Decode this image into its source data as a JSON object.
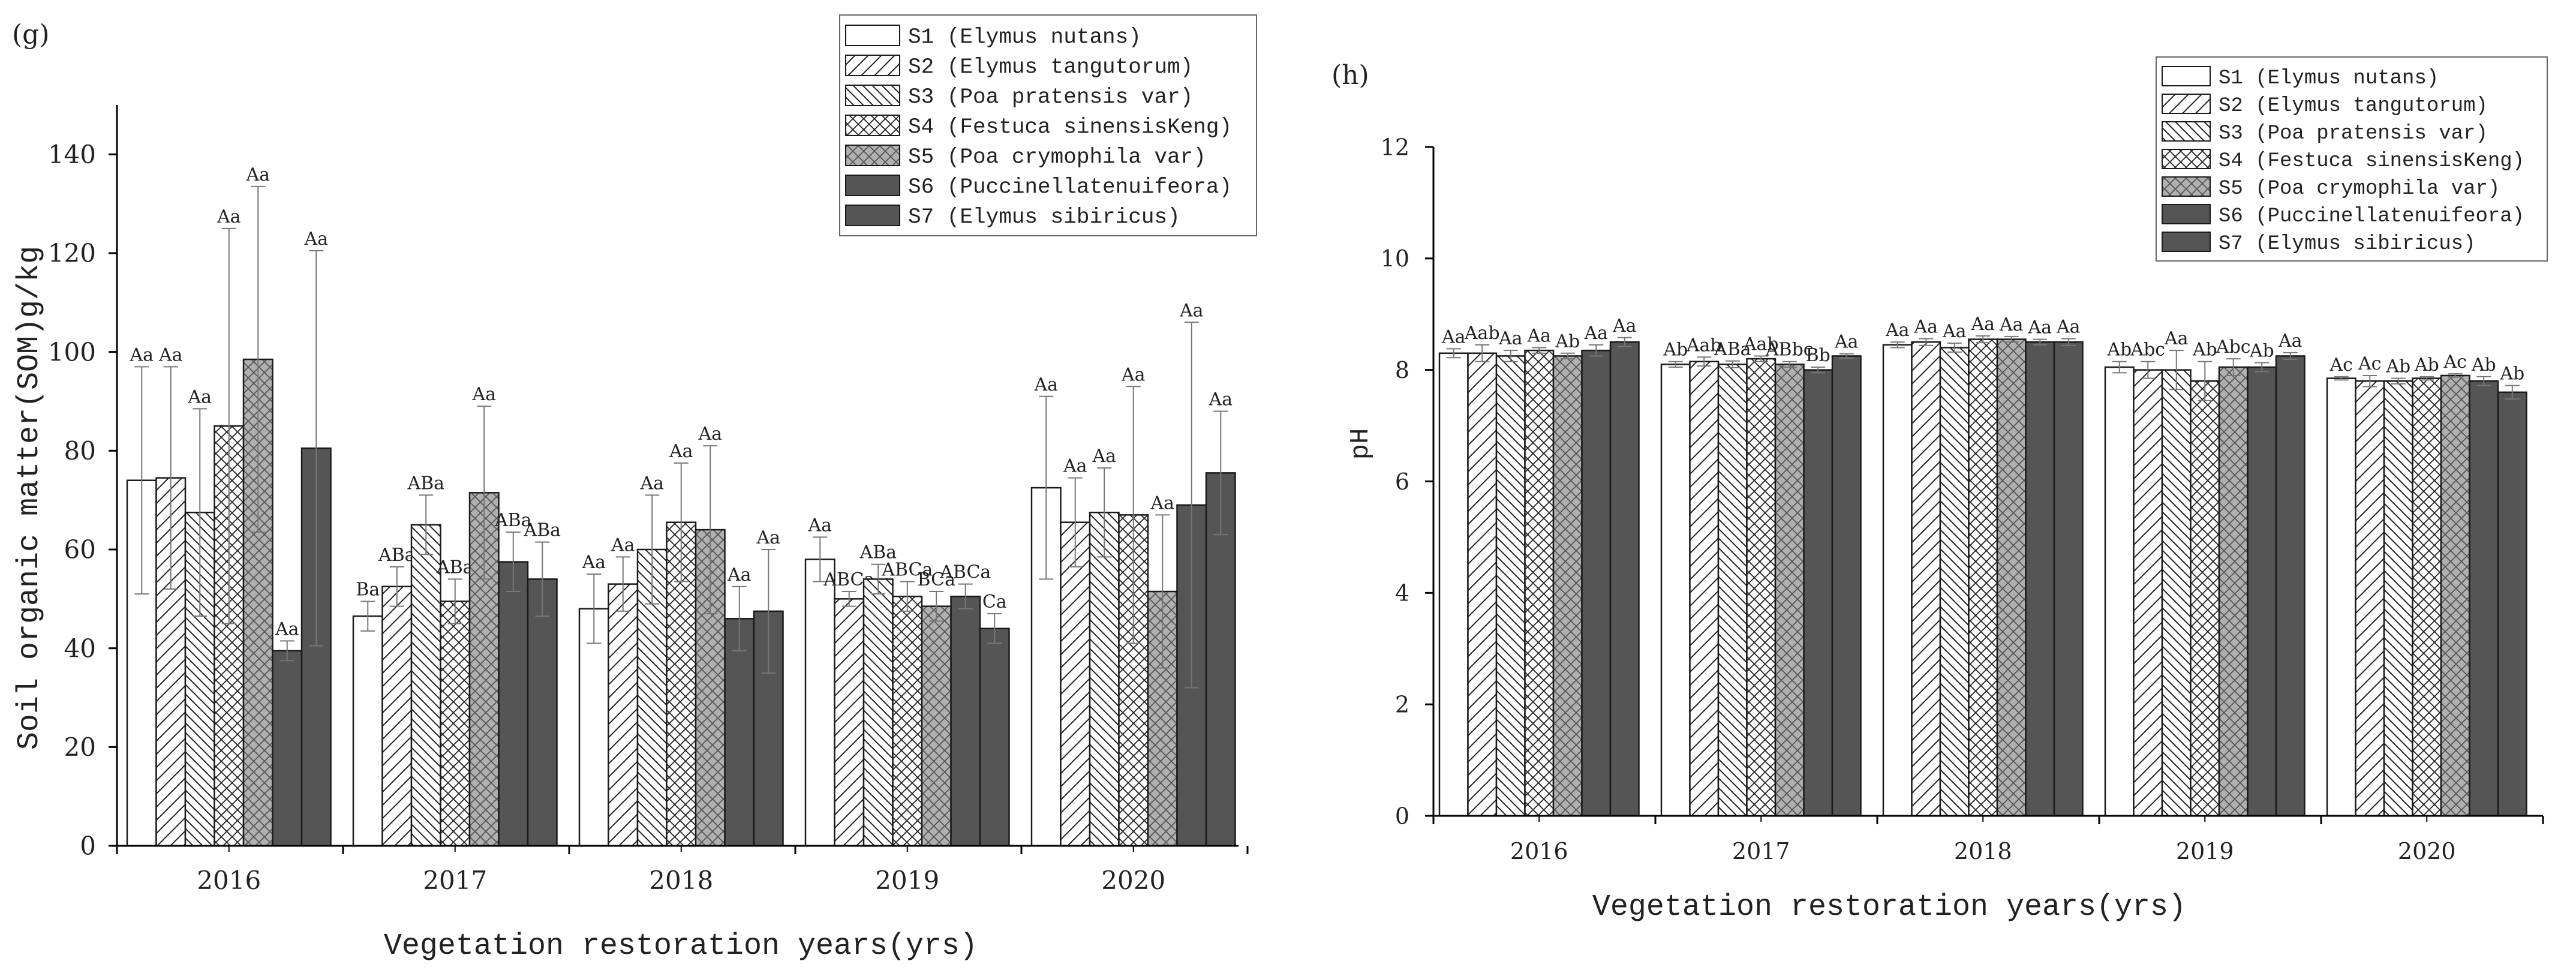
{
  "chart_data": [
    {
      "panel_label": "(g)",
      "type": "bar",
      "title": "",
      "xlabel": "Vegetation restoration years(yrs)",
      "ylabel": "Soil organic matter(SOM)g/kg",
      "ylim": [
        0,
        150
      ],
      "yticks": [
        0,
        20,
        40,
        60,
        80,
        100,
        120,
        140
      ],
      "legend_position": "top-right",
      "categories": [
        "2016",
        "2017",
        "2018",
        "2019",
        "2020"
      ],
      "series": [
        {
          "name": "S1 (Elymus nutans)",
          "pattern": "plain",
          "values": [
            74,
            46.5,
            48,
            58,
            72.5
          ],
          "errors": [
            23,
            3,
            7,
            4.5,
            18.5
          ],
          "labels": [
            "Aa",
            "Ba",
            "Aa",
            "Aa",
            "Aa"
          ]
        },
        {
          "name": "S2 (Elymus tangutorum)",
          "pattern": "diag-right",
          "values": [
            74.5,
            52.5,
            53,
            50,
            65.5
          ],
          "errors": [
            22.5,
            4,
            5.5,
            1.5,
            9
          ],
          "labels": [
            "Aa",
            "ABa",
            "Aa",
            "ABCa",
            "Aa"
          ]
        },
        {
          "name": "S3 (Poa pratensis var)",
          "pattern": "diag-left",
          "values": [
            67.5,
            65,
            60,
            54,
            67.5
          ],
          "errors": [
            21,
            6,
            11,
            3,
            9
          ],
          "labels": [
            "Aa",
            "ABa",
            "Aa",
            "ABa",
            "Aa"
          ]
        },
        {
          "name": "S4 (Festuca sinensisKeng)",
          "pattern": "cross",
          "values": [
            85,
            49.5,
            65.5,
            50.5,
            67
          ],
          "errors": [
            40,
            4.5,
            12,
            3,
            26
          ],
          "labels": [
            "Aa",
            "ABa",
            "Aa",
            "ABCa",
            "Aa"
          ]
        },
        {
          "name": "S5 (Poa crymophila var)",
          "pattern": "grey-cross",
          "values": [
            98.5,
            71.5,
            64,
            48.5,
            51.5
          ],
          "errors": [
            35,
            17.5,
            17,
            3,
            15.5
          ],
          "labels": [
            "Aa",
            "Aa",
            "Aa",
            "BCa",
            "Aa"
          ]
        },
        {
          "name": "S6 (Puccinellatenuifeora)",
          "pattern": "dark",
          "values": [
            39.5,
            57.5,
            46,
            50.5,
            69
          ],
          "errors": [
            2,
            6,
            6.5,
            2.5,
            37
          ],
          "labels": [
            "Aa",
            "ABa",
            "Aa",
            "ABCa",
            "Aa"
          ]
        },
        {
          "name": "S7 (Elymus sibiricus)",
          "pattern": "dark",
          "values": [
            80.5,
            54,
            47.5,
            44,
            75.5
          ],
          "errors": [
            40,
            7.5,
            12.5,
            3,
            12.5
          ],
          "labels": [
            "Aa",
            "ABa",
            "Aa",
            "Ca",
            "Aa"
          ]
        }
      ]
    },
    {
      "panel_label": "(h)",
      "type": "bar",
      "title": "",
      "xlabel": "Vegetation restoration years(yrs)",
      "ylabel": "pH",
      "ylim": [
        0,
        12
      ],
      "yticks": [
        0,
        2,
        4,
        6,
        8,
        10,
        12
      ],
      "legend_position": "top-right",
      "categories": [
        "2016",
        "2017",
        "2018",
        "2019",
        "2020"
      ],
      "series": [
        {
          "name": "S1 (Elymus nutans)",
          "pattern": "plain",
          "values": [
            8.3,
            8.1,
            8.45,
            8.05,
            7.85
          ],
          "errors": [
            0.08,
            0.05,
            0.05,
            0.1,
            0.03
          ],
          "labels": [
            "Aa",
            "Ab",
            "Aa",
            "Ab",
            "Ac"
          ]
        },
        {
          "name": "S2 (Elymus tangutorum)",
          "pattern": "diag-right",
          "values": [
            8.3,
            8.15,
            8.5,
            8.0,
            7.8
          ],
          "errors": [
            0.15,
            0.08,
            0.06,
            0.15,
            0.1
          ],
          "labels": [
            "Aab",
            "Aab",
            "Aa",
            "Abc",
            "Ac"
          ]
        },
        {
          "name": "S3 (Poa pratensis var)",
          "pattern": "diag-left",
          "values": [
            8.25,
            8.1,
            8.4,
            8.0,
            7.8
          ],
          "errors": [
            0.1,
            0.06,
            0.08,
            0.35,
            0.05
          ],
          "labels": [
            "Aa",
            "ABa",
            "Aa",
            "Aa",
            "Ab"
          ]
        },
        {
          "name": "S4 (Festuca sinensisKeng)",
          "pattern": "cross",
          "values": [
            8.35,
            8.2,
            8.55,
            7.8,
            7.85
          ],
          "errors": [
            0.05,
            0.05,
            0.06,
            0.35,
            0.03
          ],
          "labels": [
            "Aa",
            "Aab",
            "Aa",
            "Ab",
            "Ab"
          ]
        },
        {
          "name": "S5 (Poa crymophila var)",
          "pattern": "grey-cross",
          "values": [
            8.25,
            8.1,
            8.55,
            8.05,
            7.9
          ],
          "errors": [
            0.05,
            0.05,
            0.05,
            0.15,
            0.03
          ],
          "labels": [
            "Ab",
            "ABbc",
            "Aa",
            "Abc",
            "Ac"
          ]
        },
        {
          "name": "S6 (Puccinellatenuifeora)",
          "pattern": "dark",
          "values": [
            8.35,
            8.0,
            8.5,
            8.05,
            7.8
          ],
          "errors": [
            0.1,
            0.05,
            0.05,
            0.08,
            0.08
          ],
          "labels": [
            "Aa",
            "Bb",
            "Aa",
            "Ab",
            "Ab"
          ]
        },
        {
          "name": "S7 (Elymus sibiricus)",
          "pattern": "dark",
          "values": [
            8.5,
            8.25,
            8.5,
            8.25,
            7.6
          ],
          "errors": [
            0.08,
            0.04,
            0.06,
            0.06,
            0.12
          ],
          "labels": [
            "Aa",
            "Aa",
            "Aa",
            "Aa",
            "Ab"
          ]
        }
      ]
    }
  ],
  "colors": {
    "bar_outline": "#1a1a1a",
    "dark_fill": "#555555",
    "grey_fill": "#b0b0b0",
    "plain_fill": "#ffffff",
    "axis": "#000000",
    "text": "#222222",
    "error_bar": "#777777"
  }
}
